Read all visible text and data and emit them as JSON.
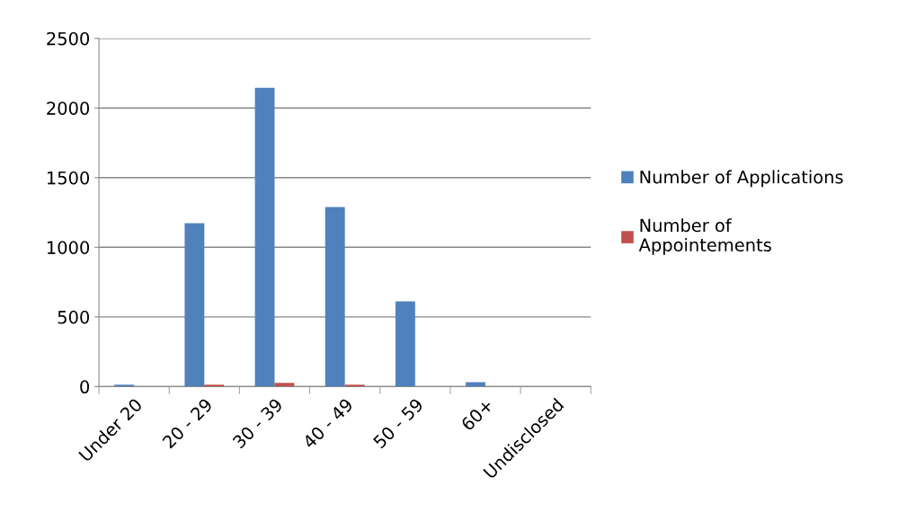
{
  "chart_data": {
    "type": "bar",
    "categories": [
      "Under 20",
      "20 - 29",
      "30 - 39",
      "40 - 49",
      "50 - 59",
      "60+",
      "Undisclosed"
    ],
    "series": [
      {
        "name": "Number of Applications",
        "color": "#4f81bd",
        "values": [
          13,
          1173,
          2146,
          1289,
          612,
          32,
          0
        ]
      },
      {
        "name": "Number of\nAppointements",
        "color": "#c0504d",
        "values": [
          0,
          13,
          26,
          13,
          0,
          0,
          0
        ]
      }
    ],
    "ylim": [
      0,
      2500
    ],
    "yticks": [
      0,
      500,
      1000,
      1500,
      2000,
      2500
    ],
    "grid": "y",
    "legend": "right"
  }
}
